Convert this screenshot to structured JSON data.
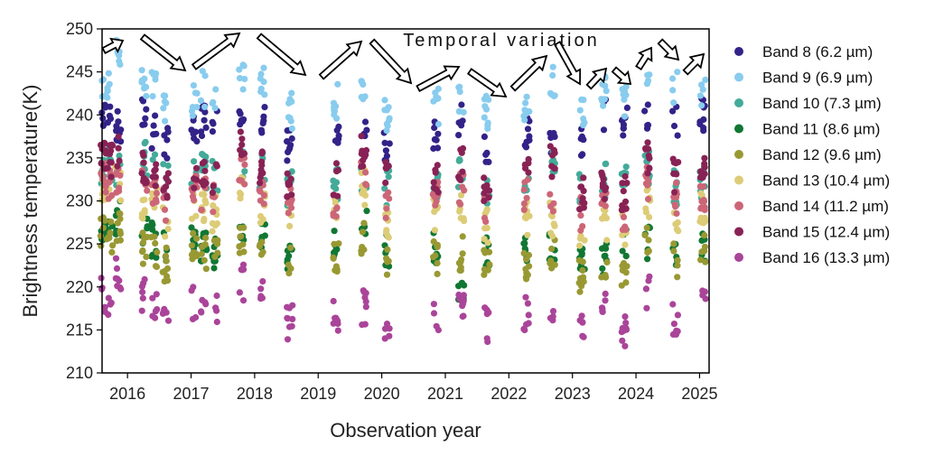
{
  "chart_data": {
    "type": "scatter",
    "title": "",
    "xlabel": "Observation year",
    "ylabel": "Brightness temperature(K)",
    "xlim": [
      2015.6,
      2025.15
    ],
    "ylim": [
      210,
      250
    ],
    "x_ticks": [
      "2016",
      "2017",
      "2018",
      "2019",
      "2020",
      "2021",
      "2022",
      "2023",
      "2024",
      "2025"
    ],
    "y_ticks": [
      "210",
      "215",
      "220",
      "225",
      "230",
      "235",
      "240",
      "245",
      "250"
    ],
    "grid": false,
    "legend_position": "right",
    "annotation": "Temporal variation",
    "observation_times": [
      2015.62,
      2015.72,
      2015.85,
      2016.27,
      2016.42,
      2016.6,
      2017.05,
      2017.2,
      2017.38,
      2017.8,
      2018.12,
      2018.55,
      2019.28,
      2019.72,
      2020.08,
      2020.85,
      2021.25,
      2021.65,
      2022.28,
      2022.68,
      2023.15,
      2023.5,
      2023.82,
      2024.18,
      2024.62,
      2025.05
    ],
    "series": [
      {
        "name": "Band 8 (6.2 µm)",
        "color": "#332288",
        "values": [
          240.5,
          241,
          238.5,
          240,
          238,
          236.5,
          239,
          239.5,
          239,
          241,
          240,
          236.5,
          237,
          238,
          236,
          237.5,
          239.5,
          236.5,
          238,
          237,
          237,
          240,
          239.5,
          240.5,
          239,
          240
        ]
      },
      {
        "name": "Band 9 (6.9 µm)",
        "color": "#88CCEE",
        "values": [
          244,
          243.5,
          247.5,
          244,
          243,
          241,
          242,
          243,
          242.5,
          245,
          243.5,
          240.5,
          241.5,
          243.5,
          240,
          241,
          242,
          240.5,
          241,
          244,
          240.5,
          242.5,
          241.5,
          245,
          243,
          243
        ]
      },
      {
        "name": "Band 10 (7.3 µm)",
        "color": "#44AA99",
        "values": [
          234,
          234,
          233.5,
          235,
          234,
          232.5,
          233,
          233.5,
          233,
          234,
          233.5,
          231.5,
          232,
          233,
          231.5,
          232,
          233,
          231.5,
          232.5,
          234.5,
          231.5,
          232.5,
          232,
          234,
          231.5,
          232
        ]
      },
      {
        "name": "Band 11 (8.6 µm)",
        "color": "#117733",
        "values": [
          227.5,
          227,
          228,
          226,
          225.5,
          224.5,
          225.5,
          225,
          224,
          227,
          226,
          223.5,
          224.5,
          227,
          224,
          224.5,
          220,
          224.5,
          224.5,
          225,
          222.5,
          223.5,
          225.5,
          225,
          224.5,
          225
        ]
      },
      {
        "name": "Band 12 (9.6 µm)",
        "color": "#999933",
        "values": [
          226.5,
          226,
          227,
          224.5,
          224,
          222.5,
          225,
          224,
          223.5,
          226,
          224.5,
          222.5,
          223.5,
          225.5,
          223,
          223.5,
          224,
          223.5,
          223,
          224,
          221.5,
          222,
          221.5,
          225.5,
          223,
          224
        ]
      },
      {
        "name": "Band 13 (10.4 µm)",
        "color": "#DDCC77",
        "values": [
          230.5,
          231,
          232,
          230,
          229.5,
          227.5,
          229.5,
          229.5,
          228.5,
          231,
          229.5,
          227.5,
          228.5,
          231.5,
          227.5,
          228.5,
          229.5,
          227,
          228,
          228,
          226.5,
          227,
          226.5,
          230,
          228,
          229
        ]
      },
      {
        "name": "Band 14 (11.2 µm)",
        "color": "#CC6677",
        "values": [
          232.5,
          232,
          233,
          232,
          231.5,
          229.5,
          231.5,
          231,
          230.5,
          233,
          231.5,
          229.5,
          230,
          233,
          230,
          230.5,
          231.5,
          229.5,
          230.5,
          230,
          228.5,
          229.5,
          228,
          232,
          230.5,
          230
        ]
      },
      {
        "name": "Band 15 (12.4 µm)",
        "color": "#882255",
        "values": [
          235,
          234.5,
          236,
          234,
          233.5,
          231.5,
          233.5,
          233.5,
          233,
          236,
          234,
          232,
          232.5,
          235.5,
          232.5,
          233,
          234,
          232,
          233,
          234.5,
          231,
          232,
          231,
          235,
          233,
          234
        ]
      },
      {
        "name": "Band 16 (13.3 µm)",
        "color": "#AA4499",
        "values": [
          219,
          218,
          221.5,
          219,
          218,
          216,
          218,
          217.5,
          217,
          220.5,
          219,
          216,
          216.5,
          217.5,
          215.5,
          216,
          218.5,
          215.5,
          217,
          215.5,
          215.5,
          218.5,
          215,
          219.5,
          216.5,
          218.5
        ]
      }
    ]
  }
}
